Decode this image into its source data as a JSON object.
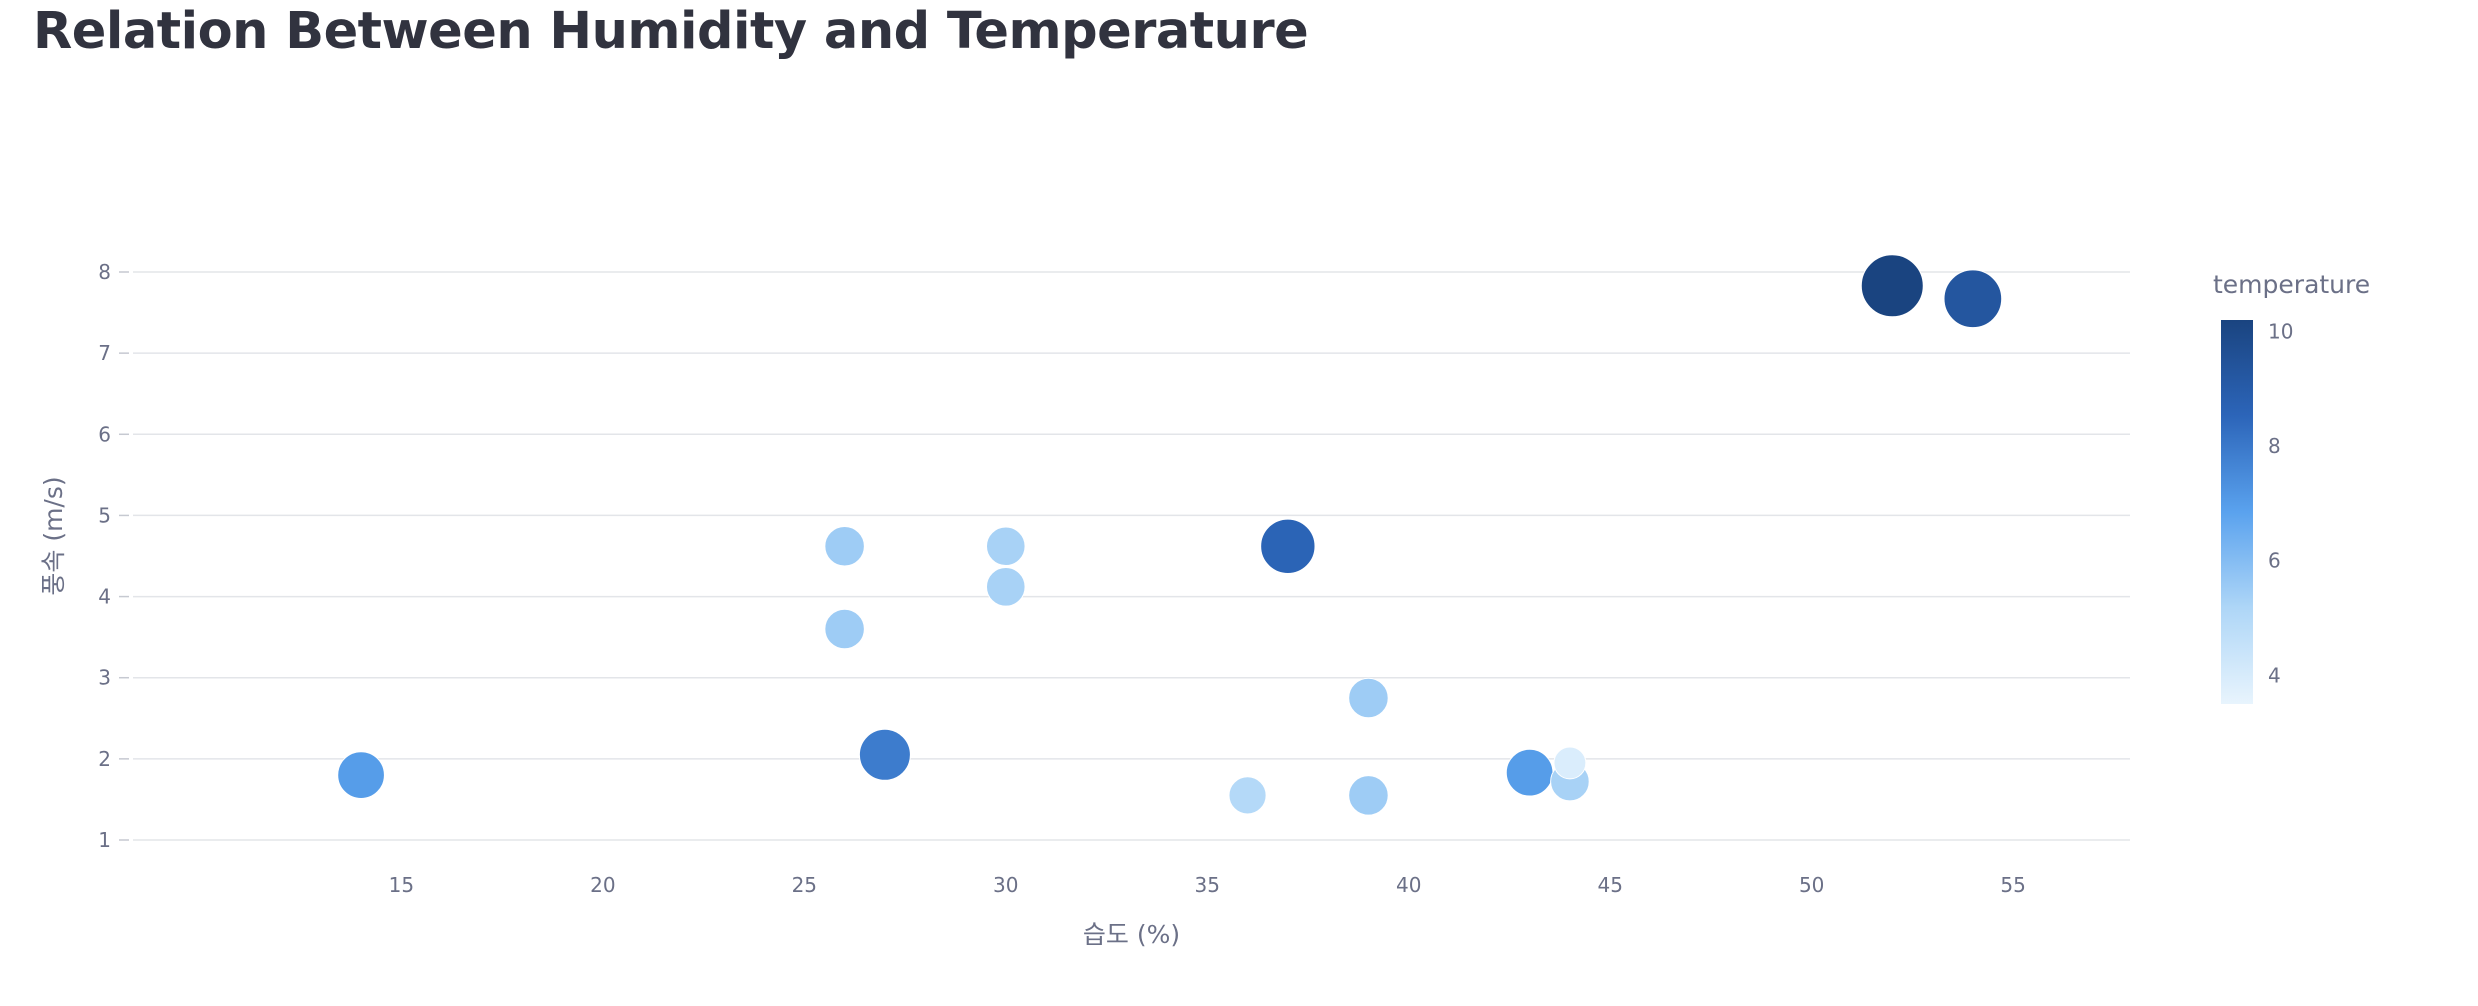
{
  "title": "Relation Between Humidity and Temperature",
  "chart_data": {
    "type": "scatter",
    "title": "Relation Between Humidity and Temperature",
    "xlabel": "습도 (%)",
    "ylabel": "풍속 (m/s)",
    "xlim": [
      11,
      57
    ],
    "ylim": [
      1,
      8
    ],
    "x_ticks": [
      15,
      20,
      25,
      30,
      35,
      40,
      45,
      50,
      55
    ],
    "y_ticks": [
      1,
      2,
      3,
      4,
      5,
      6,
      7,
      8
    ],
    "grid": "horizontal",
    "color_field": "temperature",
    "size_field": "temperature",
    "colorbar": {
      "title": "temperature",
      "range": [
        3.5,
        10.2
      ],
      "ticks": [
        4,
        6,
        8,
        10
      ],
      "placement": "right",
      "colors": [
        "#e8f4fd",
        "#aed6f7",
        "#5aa2ee",
        "#2c65b9",
        "#1a4480"
      ]
    },
    "points": [
      {
        "x": 14,
        "y": 1.8,
        "temperature": 7.0
      },
      {
        "x": 26,
        "y": 4.62,
        "temperature": 5.5
      },
      {
        "x": 26,
        "y": 3.6,
        "temperature": 5.5
      },
      {
        "x": 27,
        "y": 2.05,
        "temperature": 7.9
      },
      {
        "x": 30,
        "y": 4.62,
        "temperature": 5.3
      },
      {
        "x": 30,
        "y": 4.12,
        "temperature": 5.3
      },
      {
        "x": 36,
        "y": 1.55,
        "temperature": 5.0
      },
      {
        "x": 37,
        "y": 4.62,
        "temperature": 8.6
      },
      {
        "x": 39,
        "y": 2.75,
        "temperature": 5.5
      },
      {
        "x": 39,
        "y": 1.55,
        "temperature": 5.5
      },
      {
        "x": 43,
        "y": 1.83,
        "temperature": 7.0
      },
      {
        "x": 44,
        "y": 1.72,
        "temperature": 5.3
      },
      {
        "x": 44,
        "y": 1.95,
        "temperature": 3.9
      },
      {
        "x": 52,
        "y": 7.83,
        "temperature": 10.2
      },
      {
        "x": 54,
        "y": 7.67,
        "temperature": 9.3
      }
    ]
  }
}
